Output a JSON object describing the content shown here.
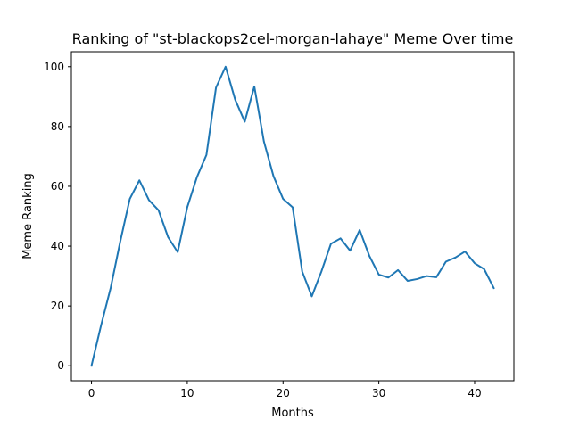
{
  "chart_data": {
    "type": "line",
    "title": "Ranking of \"st-blackops2cel-morgan-lahaye\" Meme Over time",
    "xlabel": "Months",
    "ylabel": "Meme Ranking",
    "xlim": [
      -2.1,
      44.1
    ],
    "ylim": [
      -5,
      105
    ],
    "xticks": [
      0,
      10,
      20,
      30,
      40
    ],
    "yticks": [
      0,
      20,
      40,
      60,
      80,
      100
    ],
    "grid": false,
    "line_color": "#1f77b4",
    "series": [
      {
        "x": [
          0,
          1,
          2,
          3,
          4,
          5,
          6,
          7,
          8,
          9,
          10,
          11,
          12,
          13,
          14,
          15,
          16,
          17,
          18,
          19,
          20,
          21,
          22,
          23,
          24,
          25,
          26,
          27,
          28,
          29,
          30,
          31,
          32,
          33,
          34,
          35,
          36,
          37,
          38,
          39,
          40,
          41,
          42
        ],
        "values": [
          0,
          13.5,
          26,
          41.5,
          55.8,
          62,
          55.4,
          52,
          43,
          38,
          53,
          63,
          70.5,
          93,
          100,
          89,
          81.6,
          93.4,
          75,
          63.4,
          55.8,
          53,
          31.5,
          23.2,
          31.5,
          40.8,
          42.6,
          38.5,
          45.4,
          36.8,
          30.5,
          29.5,
          32,
          28.4,
          29,
          30,
          29.6,
          34.8,
          36.2,
          38.2,
          34.3,
          32.3,
          26
        ]
      }
    ]
  }
}
